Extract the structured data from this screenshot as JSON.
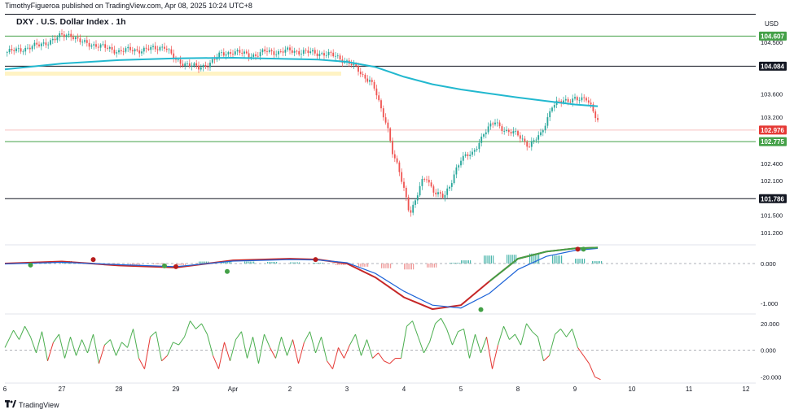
{
  "header": {
    "attribution": "TimothyFigueroa published on TradingView.com, Apr 08, 2025 10:24 UTC+8",
    "currency": "USD",
    "symbol_title": "DXY . U.S. Dollar Index . 1h"
  },
  "footer": {
    "brand": "TradingView",
    "logo_icon": "tradingview-logo-icon"
  },
  "colors": {
    "up": "#26a69a",
    "down": "#ef5350",
    "ma_line": "#22b8cf",
    "green_level": "#43a047",
    "black_level": "#131722",
    "red_level": "#e53935",
    "zone": "#fff3c4",
    "macd_slow": "#c62828",
    "macd_fast": "#1e64d8",
    "osc_up": "#4caf50",
    "osc_down": "#e53935"
  },
  "chart_data": [
    {
      "type": "candlestick",
      "panel": "price",
      "title": "DXY . U.S. Dollar Index . 1h",
      "ylim": [
        101.0,
        104.95
      ],
      "yticks": [
        "104.500",
        "104.084",
        "103.600",
        "103.200",
        "102.976",
        "102.775",
        "102.400",
        "102.100",
        "101.786",
        "101.500",
        "101.200"
      ],
      "x_day_positions": [
        6,
        27,
        28,
        29,
        "Apr",
        2,
        3,
        4,
        5,
        8,
        9,
        10,
        11,
        12
      ],
      "x_labels": [
        "6",
        "27",
        "28",
        "29",
        "Apr",
        "2",
        "3",
        "4",
        "5",
        "8",
        "9",
        "10",
        "11",
        "12"
      ],
      "close_path": [
        [
          26.0,
          104.32
        ],
        [
          26.3,
          104.38
        ],
        [
          26.6,
          104.45
        ],
        [
          26.9,
          104.56
        ],
        [
          27.0,
          104.62
        ],
        [
          27.15,
          104.64
        ],
        [
          27.3,
          104.51
        ],
        [
          27.5,
          104.47
        ],
        [
          27.7,
          104.42
        ],
        [
          27.9,
          104.37
        ],
        [
          28.0,
          104.34
        ],
        [
          28.2,
          104.37
        ],
        [
          28.4,
          104.36
        ],
        [
          28.6,
          104.39
        ],
        [
          28.8,
          104.43
        ],
        [
          28.9,
          104.3
        ],
        [
          29.0,
          104.18
        ],
        [
          29.2,
          104.12
        ],
        [
          29.4,
          104.05
        ],
        [
          29.6,
          104.14
        ],
        [
          29.8,
          104.3
        ],
        [
          30.0,
          104.33
        ],
        [
          30.2,
          104.3
        ],
        [
          30.4,
          104.27
        ],
        [
          30.6,
          104.35
        ],
        [
          30.8,
          104.32
        ],
        [
          31.0,
          104.36
        ],
        [
          31.2,
          104.33
        ],
        [
          31.4,
          104.32
        ],
        [
          31.6,
          104.3
        ],
        [
          31.8,
          104.26
        ],
        [
          32.0,
          104.16
        ],
        [
          32.1,
          104.1
        ],
        [
          32.2,
          104.01
        ],
        [
          32.3,
          103.9
        ],
        [
          32.4,
          103.85
        ],
        [
          32.5,
          103.65
        ],
        [
          32.6,
          103.32
        ],
        [
          32.7,
          103.1
        ],
        [
          32.8,
          102.6
        ],
        [
          32.9,
          102.3
        ],
        [
          33.0,
          101.95
        ],
        [
          33.1,
          101.55
        ],
        [
          33.2,
          101.75
        ],
        [
          33.3,
          102.05
        ],
        [
          33.4,
          102.14
        ],
        [
          33.5,
          101.95
        ],
        [
          33.6,
          101.88
        ],
        [
          33.7,
          101.8
        ],
        [
          33.8,
          101.98
        ],
        [
          33.9,
          102.28
        ],
        [
          34.0,
          102.48
        ],
        [
          34.2,
          102.56
        ],
        [
          34.4,
          102.92
        ],
        [
          34.6,
          103.12
        ],
        [
          34.8,
          102.95
        ],
        [
          35.0,
          102.9
        ],
        [
          35.2,
          102.7
        ],
        [
          35.4,
          102.9
        ],
        [
          35.6,
          103.4
        ],
        [
          35.8,
          103.48
        ],
        [
          36.0,
          103.53
        ],
        [
          36.1,
          103.48
        ],
        [
          36.2,
          103.52
        ],
        [
          36.3,
          103.38
        ],
        [
          36.4,
          103.14
        ]
      ],
      "moving_average": [
        [
          26.0,
          104.03
        ],
        [
          27.0,
          104.13
        ],
        [
          28.0,
          104.19
        ],
        [
          29.0,
          104.22
        ],
        [
          30.0,
          104.23
        ],
        [
          31.0,
          104.21
        ],
        [
          31.5,
          104.2
        ],
        [
          32.0,
          104.16
        ],
        [
          32.5,
          104.07
        ],
        [
          33.0,
          103.9
        ],
        [
          33.5,
          103.77
        ],
        [
          34.0,
          103.68
        ],
        [
          34.5,
          103.61
        ],
        [
          35.0,
          103.54
        ],
        [
          35.5,
          103.48
        ],
        [
          36.0,
          103.42
        ],
        [
          36.4,
          103.39
        ]
      ],
      "levels": [
        {
          "value": 104.607,
          "label": "104.607",
          "kind": "resistance"
        },
        {
          "value": 104.084,
          "label": "104.084",
          "kind": "key"
        },
        {
          "value": 102.976,
          "label": "102.976",
          "kind": "last-price"
        },
        {
          "value": 102.775,
          "label": "102.775",
          "kind": "support"
        },
        {
          "value": 101.786,
          "label": "101.786",
          "kind": "key"
        }
      ],
      "zone": {
        "x_from": 26.0,
        "x_to": 31.9,
        "y_from": 103.92,
        "y_to": 103.99
      }
    },
    {
      "type": "line",
      "panel": "macd",
      "ylim": [
        -1.25,
        0.45
      ],
      "yticks": [
        "0.000",
        "-1.000"
      ],
      "series": [
        {
          "key": "slow",
          "values": [
            [
              26.0,
              0.0
            ],
            [
              27.0,
              0.05
            ],
            [
              28.0,
              -0.05
            ],
            [
              29.0,
              -0.1
            ],
            [
              30.0,
              0.08
            ],
            [
              31.0,
              0.12
            ],
            [
              31.5,
              0.1
            ],
            [
              32.0,
              0.0
            ],
            [
              32.5,
              -0.35
            ],
            [
              33.0,
              -0.85
            ],
            [
              33.5,
              -1.15
            ],
            [
              34.0,
              -1.05
            ],
            [
              34.5,
              -0.45
            ],
            [
              35.0,
              0.12
            ],
            [
              35.5,
              0.3
            ],
            [
              36.0,
              0.38
            ],
            [
              36.4,
              0.4
            ]
          ]
        },
        {
          "key": "fast",
          "values": [
            [
              26.0,
              -0.01
            ],
            [
              27.0,
              0.03
            ],
            [
              28.0,
              -0.03
            ],
            [
              29.0,
              -0.08
            ],
            [
              30.0,
              0.06
            ],
            [
              31.0,
              0.1
            ],
            [
              31.5,
              0.09
            ],
            [
              32.0,
              0.02
            ],
            [
              32.5,
              -0.25
            ],
            [
              33.0,
              -0.7
            ],
            [
              33.5,
              -1.05
            ],
            [
              34.0,
              -1.12
            ],
            [
              34.5,
              -0.75
            ],
            [
              35.0,
              -0.15
            ],
            [
              35.5,
              0.18
            ],
            [
              36.0,
              0.33
            ],
            [
              36.4,
              0.38
            ]
          ]
        }
      ],
      "histogram": [
        [
          26.2,
          0.03
        ],
        [
          26.6,
          0.05
        ],
        [
          27.0,
          0.06
        ],
        [
          27.4,
          0.02
        ],
        [
          27.8,
          -0.03
        ],
        [
          28.2,
          -0.03
        ],
        [
          28.6,
          -0.02
        ],
        [
          29.0,
          -0.04
        ],
        [
          29.4,
          0.05
        ],
        [
          29.8,
          0.06
        ],
        [
          30.2,
          0.05
        ],
        [
          30.6,
          0.04
        ],
        [
          31.0,
          0.03
        ],
        [
          31.4,
          0.02
        ],
        [
          31.8,
          -0.04
        ],
        [
          32.2,
          -0.08
        ],
        [
          32.6,
          -0.12
        ],
        [
          33.0,
          -0.15
        ],
        [
          33.4,
          -0.1
        ],
        [
          33.8,
          0.02
        ],
        [
          34.0,
          0.08
        ],
        [
          34.4,
          0.2
        ],
        [
          34.8,
          0.22
        ],
        [
          35.2,
          0.25
        ],
        [
          35.6,
          0.2
        ],
        [
          36.0,
          0.12
        ],
        [
          36.3,
          0.06
        ]
      ],
      "markers": [
        {
          "x": 26.45,
          "y": -0.04,
          "kind": "bull"
        },
        {
          "x": 27.55,
          "y": 0.1,
          "kind": "bear"
        },
        {
          "x": 28.8,
          "y": -0.06,
          "kind": "bull"
        },
        {
          "x": 29.0,
          "y": -0.08,
          "kind": "bear"
        },
        {
          "x": 29.9,
          "y": -0.2,
          "kind": "bull"
        },
        {
          "x": 31.45,
          "y": 0.1,
          "kind": "bear"
        },
        {
          "x": 34.35,
          "y": -1.16,
          "kind": "bull"
        },
        {
          "x": 36.05,
          "y": 0.36,
          "kind": "bear"
        },
        {
          "x": 36.15,
          "y": 0.36,
          "kind": "bull"
        }
      ]
    },
    {
      "type": "line",
      "panel": "oscillator",
      "ylim": [
        -24,
        26
      ],
      "yticks": [
        "20.000",
        "0.000",
        "-20.000"
      ],
      "baseline": 0,
      "values": [
        [
          26.0,
          2
        ],
        [
          26.15,
          15
        ],
        [
          26.25,
          8
        ],
        [
          26.35,
          18
        ],
        [
          26.45,
          10
        ],
        [
          26.55,
          -2
        ],
        [
          26.65,
          14
        ],
        [
          26.75,
          -8
        ],
        [
          26.85,
          6
        ],
        [
          26.95,
          12
        ],
        [
          27.05,
          -6
        ],
        [
          27.15,
          10
        ],
        [
          27.25,
          -4
        ],
        [
          27.35,
          8
        ],
        [
          27.45,
          -2
        ],
        [
          27.55,
          12
        ],
        [
          27.65,
          -10
        ],
        [
          27.75,
          4
        ],
        [
          27.85,
          8
        ],
        [
          27.95,
          -4
        ],
        [
          28.05,
          6
        ],
        [
          28.15,
          2
        ],
        [
          28.25,
          16
        ],
        [
          28.35,
          -6
        ],
        [
          28.45,
          -14
        ],
        [
          28.55,
          10
        ],
        [
          28.65,
          14
        ],
        [
          28.75,
          -8
        ],
        [
          28.85,
          -4
        ],
        [
          28.95,
          6
        ],
        [
          29.05,
          4
        ],
        [
          29.15,
          10
        ],
        [
          29.25,
          22
        ],
        [
          29.35,
          16
        ],
        [
          29.45,
          20
        ],
        [
          29.55,
          12
        ],
        [
          29.65,
          -4
        ],
        [
          29.75,
          -14
        ],
        [
          29.85,
          6
        ],
        [
          29.95,
          -8
        ],
        [
          30.05,
          8
        ],
        [
          30.15,
          14
        ],
        [
          30.25,
          -6
        ],
        [
          30.35,
          10
        ],
        [
          30.45,
          -10
        ],
        [
          30.55,
          12
        ],
        [
          30.65,
          2
        ],
        [
          30.75,
          -6
        ],
        [
          30.85,
          10
        ],
        [
          30.95,
          -4
        ],
        [
          31.05,
          8
        ],
        [
          31.15,
          -10
        ],
        [
          31.25,
          6
        ],
        [
          31.35,
          14
        ],
        [
          31.45,
          -2
        ],
        [
          31.55,
          10
        ],
        [
          31.65,
          -8
        ],
        [
          31.75,
          -14
        ],
        [
          31.85,
          2
        ],
        [
          31.95,
          -6
        ],
        [
          32.05,
          4
        ],
        [
          32.15,
          12
        ],
        [
          32.25,
          -4
        ],
        [
          32.35,
          8
        ],
        [
          32.45,
          -6
        ],
        [
          32.55,
          -2
        ],
        [
          32.65,
          -8
        ],
        [
          32.75,
          -10
        ],
        [
          32.85,
          -6
        ],
        [
          32.95,
          -6
        ],
        [
          33.05,
          18
        ],
        [
          33.15,
          22
        ],
        [
          33.25,
          10
        ],
        [
          33.35,
          -2
        ],
        [
          33.45,
          6
        ],
        [
          33.55,
          20
        ],
        [
          33.65,
          24
        ],
        [
          33.75,
          16
        ],
        [
          33.85,
          4
        ],
        [
          33.95,
          14
        ],
        [
          34.05,
          16
        ],
        [
          34.15,
          -6
        ],
        [
          34.25,
          12
        ],
        [
          34.35,
          -2
        ],
        [
          34.45,
          10
        ],
        [
          34.55,
          -14
        ],
        [
          34.65,
          4
        ],
        [
          34.75,
          18
        ],
        [
          34.85,
          8
        ],
        [
          34.95,
          12
        ],
        [
          35.05,
          4
        ],
        [
          35.15,
          20
        ],
        [
          35.25,
          14
        ],
        [
          35.35,
          10
        ],
        [
          35.45,
          -8
        ],
        [
          35.55,
          -4
        ],
        [
          35.65,
          12
        ],
        [
          35.75,
          16
        ],
        [
          35.85,
          10
        ],
        [
          35.95,
          16
        ],
        [
          36.05,
          2
        ],
        [
          36.15,
          -4
        ],
        [
          36.25,
          -10
        ],
        [
          36.35,
          -20
        ],
        [
          36.45,
          -22
        ]
      ]
    }
  ]
}
